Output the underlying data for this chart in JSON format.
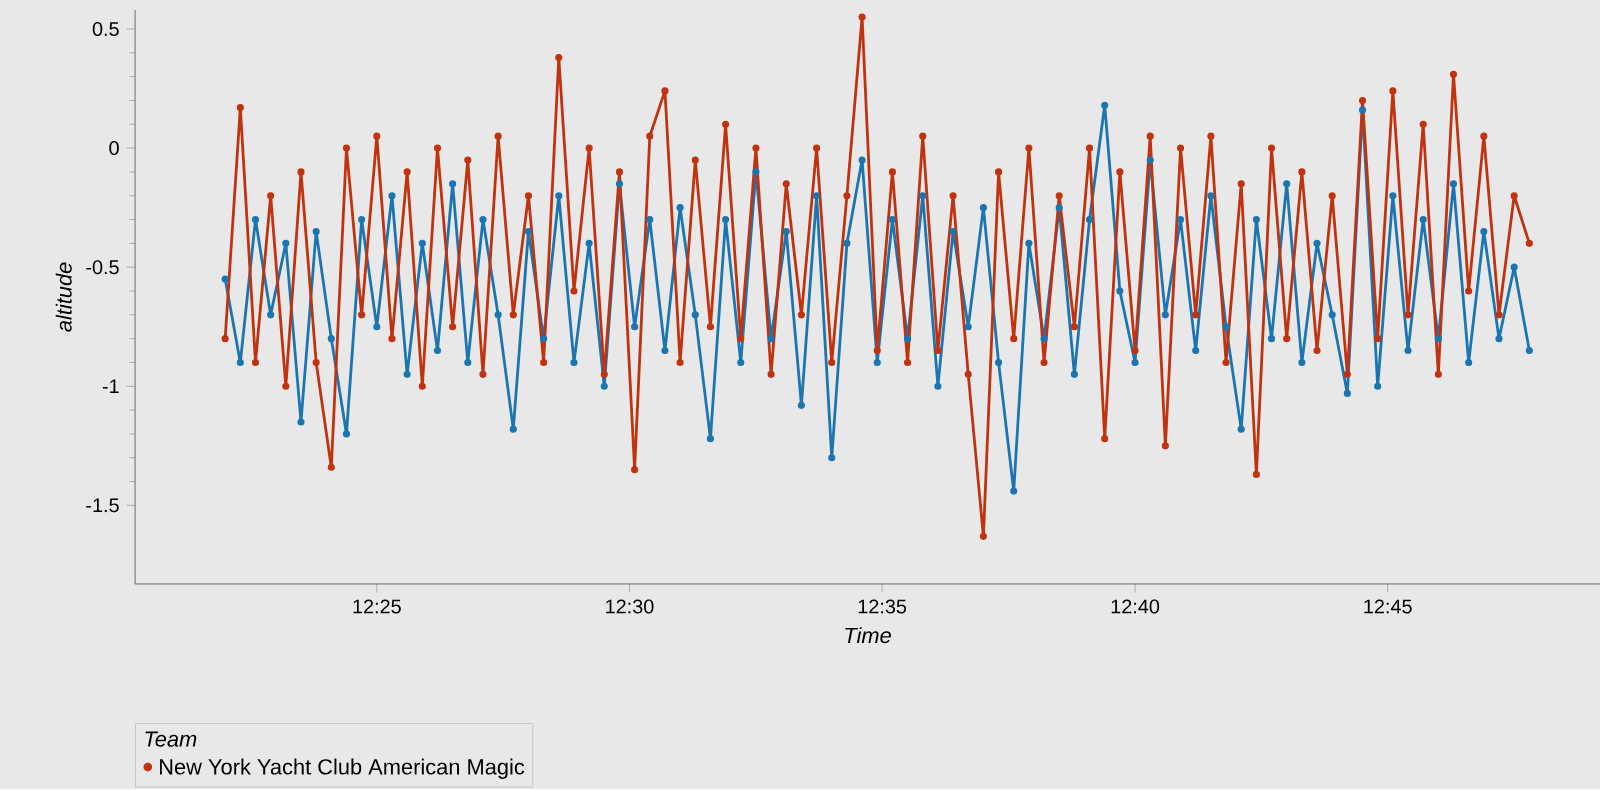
{
  "chart_data": {
    "type": "line",
    "xlabel": "Time",
    "ylabel": "altitude",
    "legend_title": "Team",
    "legend": "bottom left",
    "marker": "circle",
    "xlim": [
      12.337,
      12.82
    ],
    "ylim": [
      -1.83,
      0.58
    ],
    "xticks": [
      {
        "value": 12.4167,
        "label": "12:25"
      },
      {
        "value": 12.5,
        "label": "12:30"
      },
      {
        "value": 12.5833,
        "label": "12:35"
      },
      {
        "value": 12.6667,
        "label": "12:40"
      },
      {
        "value": 12.75,
        "label": "12:45"
      }
    ],
    "yticks": [
      -1.5,
      -1,
      -0.5,
      0,
      0.5
    ],
    "x": [
      12.3667,
      12.3717,
      12.3767,
      12.3817,
      12.3867,
      12.3917,
      12.3967,
      12.4017,
      12.4067,
      12.4117,
      12.4167,
      12.4217,
      12.4267,
      12.4317,
      12.4367,
      12.4417,
      12.4467,
      12.4517,
      12.4567,
      12.4617,
      12.4667,
      12.4717,
      12.4767,
      12.4817,
      12.4867,
      12.4917,
      12.4967,
      12.5017,
      12.5067,
      12.5117,
      12.5167,
      12.5217,
      12.5267,
      12.5317,
      12.5367,
      12.5417,
      12.5467,
      12.5517,
      12.5567,
      12.5617,
      12.5667,
      12.5717,
      12.5767,
      12.5817,
      12.5867,
      12.5917,
      12.5967,
      12.6017,
      12.6067,
      12.6117,
      12.6167,
      12.6217,
      12.6267,
      12.6317,
      12.6367,
      12.6417,
      12.6467,
      12.6517,
      12.6567,
      12.6617,
      12.6667,
      12.6717,
      12.6767,
      12.6817,
      12.6867,
      12.6917,
      12.6967,
      12.7017,
      12.7067,
      12.7117,
      12.7167,
      12.7217,
      12.7267,
      12.7317,
      12.7367,
      12.7417,
      12.7467,
      12.7517,
      12.7567,
      12.7617,
      12.7667,
      12.7717,
      12.7767,
      12.7817,
      12.7867,
      12.7917,
      12.7967
    ],
    "series": [
      {
        "color": "#1a75b0",
        "values": [
          -0.55,
          -0.9,
          -0.3,
          -0.7,
          -0.4,
          -1.15,
          -0.35,
          -0.8,
          -1.2,
          -0.3,
          -0.75,
          -0.2,
          -0.95,
          -0.4,
          -0.85,
          -0.15,
          -0.9,
          -0.3,
          -0.7,
          -1.18,
          -0.35,
          -0.8,
          -0.2,
          -0.9,
          -0.4,
          -1.0,
          -0.15,
          -0.75,
          -0.3,
          -0.85,
          -0.25,
          -0.7,
          -1.22,
          -0.3,
          -0.9,
          -0.1,
          -0.8,
          -0.35,
          -1.08,
          -0.2,
          -1.3,
          -0.4,
          -0.05,
          -0.9,
          -0.3,
          -0.8,
          -0.2,
          -1.0,
          -0.35,
          -0.75,
          -0.25,
          -0.9,
          -1.44,
          -0.4,
          -0.8,
          -0.25,
          -0.95,
          -0.3,
          0.18,
          -0.6,
          -0.9,
          -0.05,
          -0.7,
          -0.3,
          -0.85,
          -0.2,
          -0.75,
          -1.18,
          -0.3,
          -0.8,
          -0.15,
          -0.9,
          -0.4,
          -0.7,
          -1.03,
          0.16,
          -1.0,
          -0.2,
          -0.85,
          -0.3,
          -0.8,
          -0.15,
          -0.9,
          -0.35,
          -0.8,
          -0.5,
          -0.85
        ]
      },
      {
        "name": "New York Yacht Club American Magic",
        "color": "#c1320f",
        "values": [
          -0.8,
          0.17,
          -0.9,
          -0.2,
          -1.0,
          -0.1,
          -0.9,
          -1.34,
          0.0,
          -0.7,
          0.05,
          -0.8,
          -0.1,
          -1.0,
          0.0,
          -0.75,
          -0.05,
          -0.95,
          0.05,
          -0.7,
          -0.2,
          -0.9,
          0.38,
          -0.6,
          0.0,
          -0.95,
          -0.1,
          -1.35,
          0.05,
          0.24,
          -0.9,
          -0.05,
          -0.75,
          0.1,
          -0.8,
          0.0,
          -0.95,
          -0.15,
          -0.7,
          0.0,
          -0.9,
          -0.2,
          0.55,
          -0.85,
          -0.1,
          -0.9,
          0.05,
          -0.85,
          -0.2,
          -0.95,
          -1.63,
          -0.1,
          -0.8,
          0.0,
          -0.9,
          -0.2,
          -0.75,
          0.0,
          -1.22,
          -0.1,
          -0.85,
          0.05,
          -1.25,
          0.0,
          -0.7,
          0.05,
          -0.9,
          -0.15,
          -1.37,
          0.0,
          -0.8,
          -0.1,
          -0.85,
          -0.2,
          -0.95,
          0.2,
          -0.8,
          0.24,
          -0.7,
          0.1,
          -0.95,
          0.31,
          -0.6,
          0.05,
          -0.7,
          -0.2,
          -0.4
        ]
      }
    ]
  }
}
